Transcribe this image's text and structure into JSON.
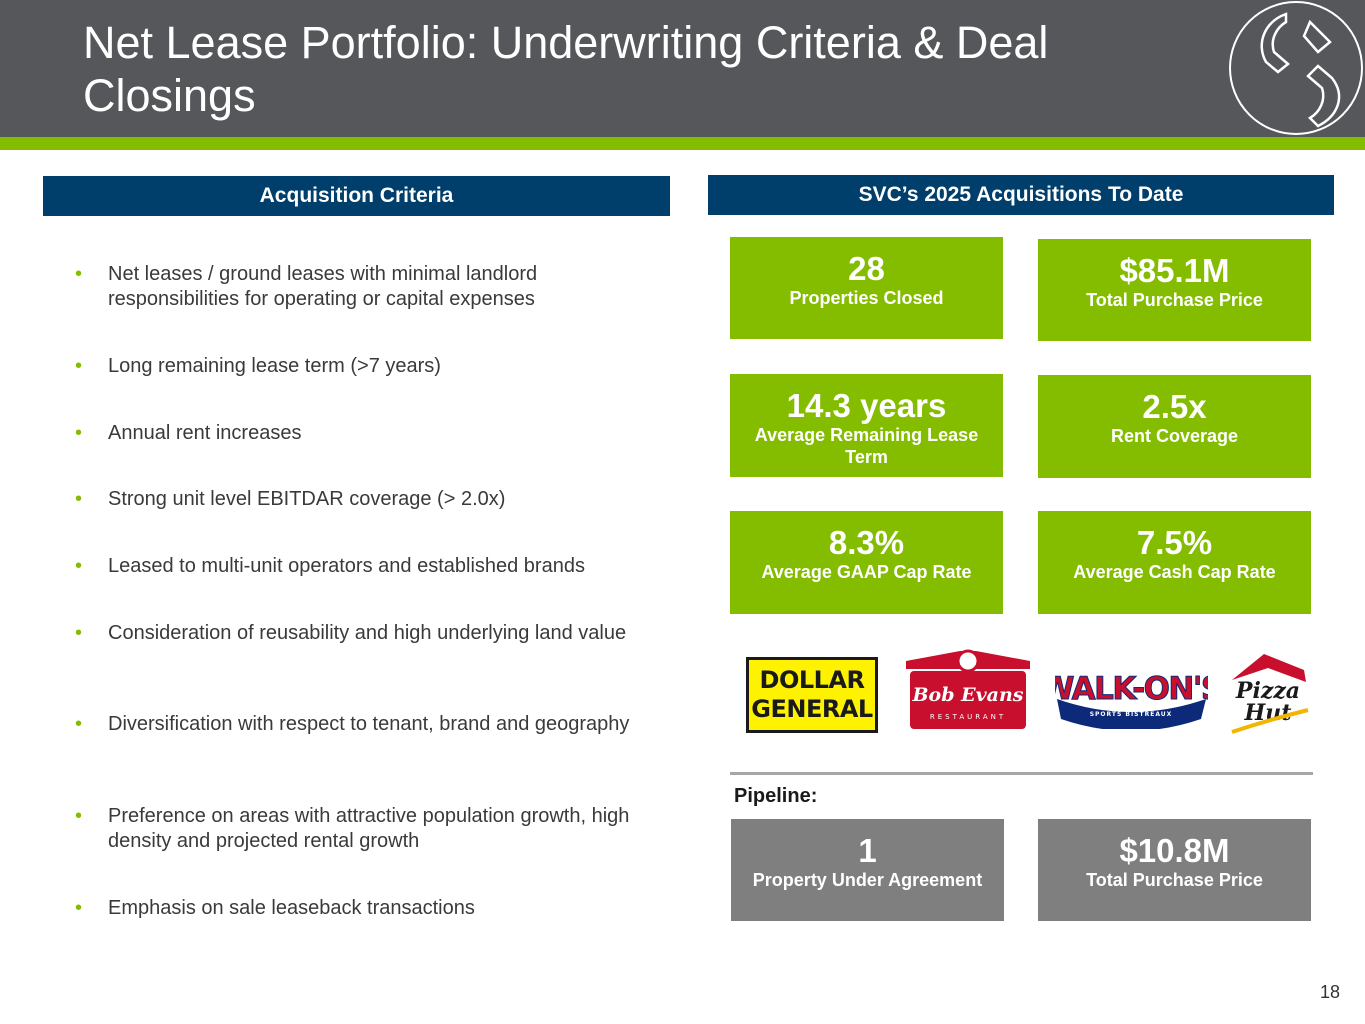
{
  "header": {
    "title": "Net Lease Portfolio: Underwriting Criteria & Deal Closings"
  },
  "acquisition_criteria": {
    "heading": "Acquisition Criteria",
    "items": [
      "Net leases / ground leases with minimal landlord responsibilities for operating or capital expenses",
      "Long remaining lease term (>7 years)",
      "Annual rent increases",
      "Strong unit level EBITDAR coverage (> 2.0x)",
      "Leased to multi-unit operators and established brands",
      "Consideration of reusability and high underlying land value",
      "Diversification with respect to tenant, brand and geography",
      "Preference on areas with attractive population growth, high density and projected rental growth",
      "Emphasis on sale leaseback transactions"
    ]
  },
  "acquisitions": {
    "heading": "SVC’s 2025 Acquisitions To Date",
    "stats": [
      {
        "value": "28",
        "label": "Properties Closed"
      },
      {
        "value": "$85.1M",
        "label": "Total Purchase Price"
      },
      {
        "value": "14.3 years",
        "label": "Average Remaining Lease Term"
      },
      {
        "value": "2.5x",
        "label": "Rent Coverage"
      },
      {
        "value": "8.3%",
        "label": "Average GAAP Cap Rate"
      },
      {
        "value": "7.5%",
        "label": "Average Cash Cap Rate"
      }
    ]
  },
  "brands": {
    "dollar_general_line1": "DOLLAR",
    "dollar_general_line2": "GENERAL",
    "bob_evans": "Bob Evans",
    "bob_evans_sub": "RESTAURANT",
    "walk_ons": "WALK-ON'S",
    "walk_ons_sub": "SPORTS BISTREAUX",
    "pizza_hut_line1": "Pizza",
    "pizza_hut_line2": "Hut"
  },
  "pipeline": {
    "label": "Pipeline:",
    "stats": [
      {
        "value": "1",
        "label": "Property Under Agreement"
      },
      {
        "value": "$10.8M",
        "label": "Total Purchase Price"
      }
    ]
  },
  "footer": {
    "page_number": "18"
  },
  "colors": {
    "header_gray": "#55575a",
    "accent_green": "#84bd00",
    "navy": "#003e6b",
    "pipeline_gray": "#7f7f7f"
  }
}
